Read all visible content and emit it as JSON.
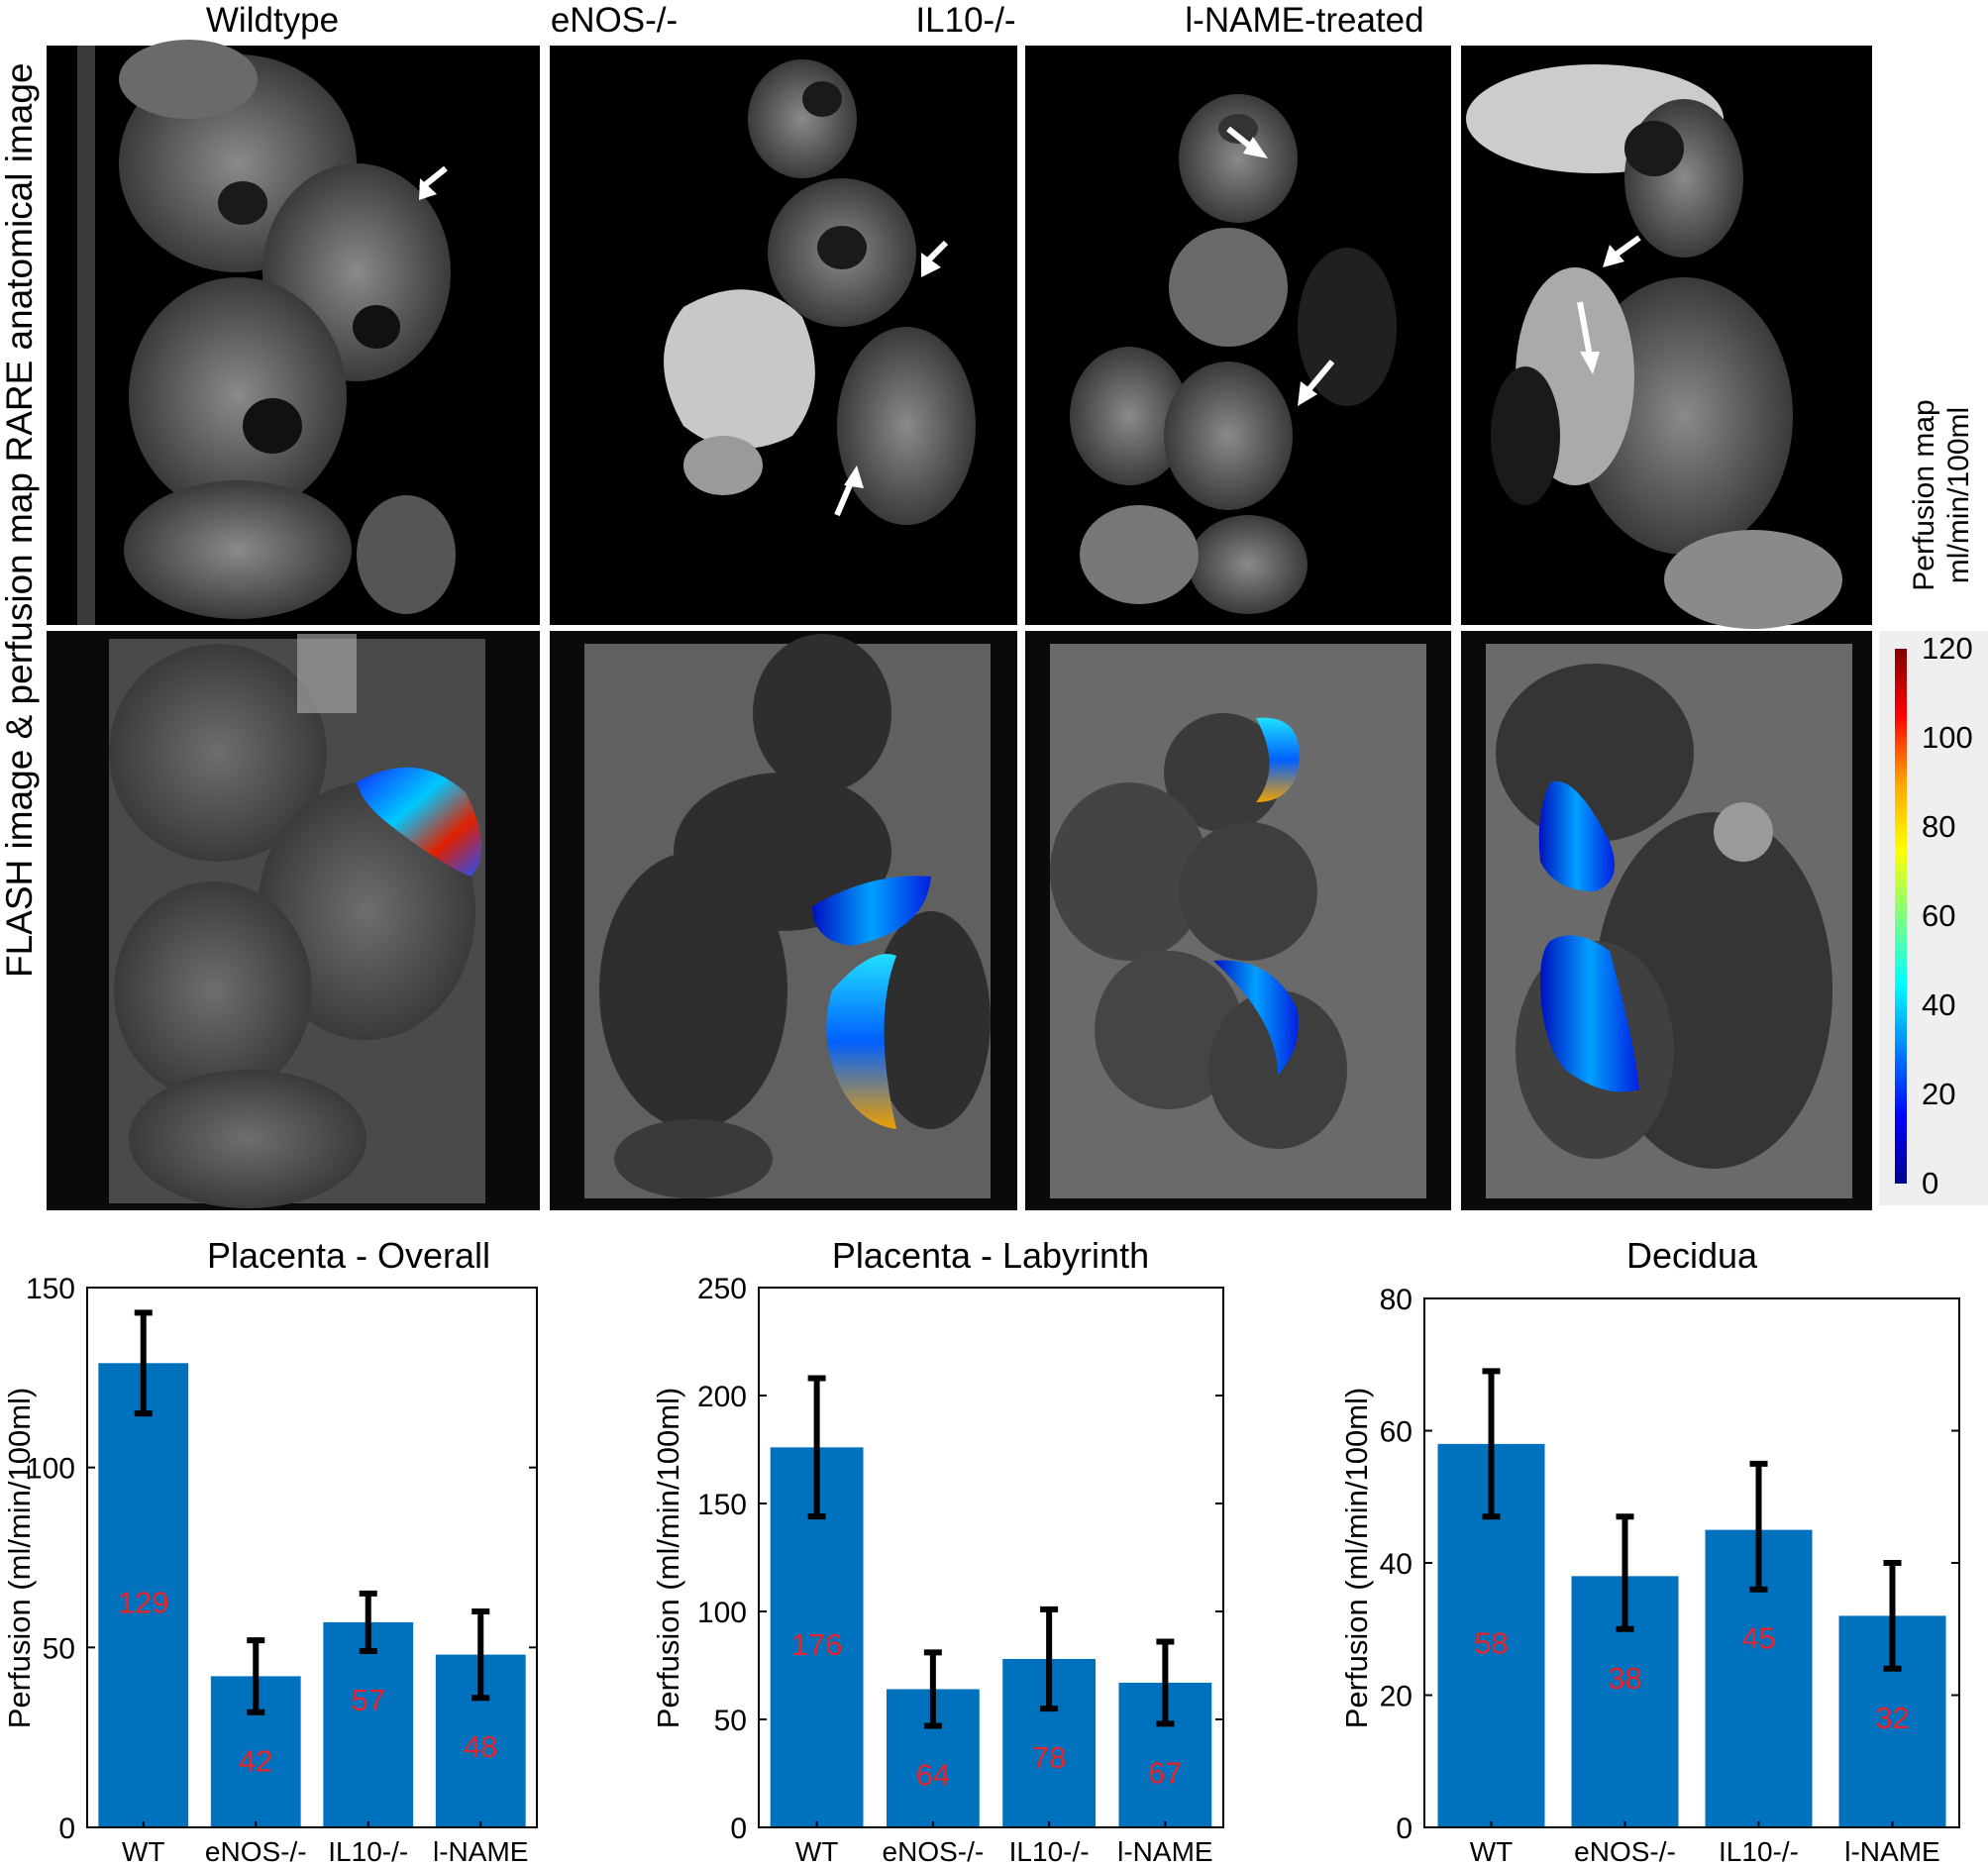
{
  "column_titles": [
    "Wildtype",
    "eNOS-/-",
    "IL10-/-",
    "l-NAME-treated"
  ],
  "row_labels": [
    "RARE anatomical image",
    "FLASH image & perfusion map"
  ],
  "colorbar": {
    "title_line1": "Perfusion map",
    "title_line2": "ml/min/100ml",
    "ticks": [
      "120",
      "100",
      "80",
      "60",
      "40",
      "20",
      "0"
    ],
    "colors": [
      "#800000",
      "#ff0000",
      "#ffa500",
      "#ffff00",
      "#7fff7f",
      "#00ffff",
      "#0080ff",
      "#0000ff",
      "#00008f"
    ]
  },
  "colors": {
    "bar": "#0072bd",
    "value_label": "#e8232a",
    "mri_background": "#000000"
  },
  "chart_data": [
    {
      "type": "bar",
      "title": "Placenta - Overall",
      "ylabel": "Perfusion (ml/min/100ml)",
      "categories": [
        "WT",
        "eNOS-/-",
        "IL10-/-",
        "l-NAME"
      ],
      "values": [
        129,
        42,
        57,
        48
      ],
      "error_low": [
        115,
        32,
        49,
        36
      ],
      "error_high": [
        143,
        52,
        65,
        60
      ],
      "value_labels": [
        "129",
        "42",
        "57",
        "48"
      ],
      "ylim": [
        0,
        150
      ],
      "yticks": [
        "0",
        "50",
        "100",
        "150"
      ]
    },
    {
      "type": "bar",
      "title": "Placenta - Labyrinth",
      "ylabel": "Perfusion (ml/min/100ml)",
      "categories": [
        "WT",
        "eNOS-/-",
        "IL10-/-",
        "l-NAME"
      ],
      "values": [
        176,
        64,
        78,
        67
      ],
      "error_low": [
        144,
        47,
        55,
        48
      ],
      "error_high": [
        208,
        81,
        101,
        86
      ],
      "value_labels": [
        "176",
        "64",
        "78",
        "67"
      ],
      "ylim": [
        0,
        250
      ],
      "yticks": [
        "0",
        "50",
        "100",
        "150",
        "200",
        "250"
      ]
    },
    {
      "type": "bar",
      "title": "Decidua",
      "ylabel": "Perfusion (ml/min/100ml)",
      "categories": [
        "WT",
        "eNOS-/-",
        "IL10-/-",
        "l-NAME"
      ],
      "values": [
        58,
        38,
        45,
        32
      ],
      "error_low": [
        47,
        30,
        36,
        24
      ],
      "error_high": [
        69,
        47,
        55,
        40
      ],
      "value_labels": [
        "58",
        "38",
        "45",
        "32"
      ],
      "ylim": [
        0,
        80
      ],
      "yticks": [
        "0",
        "20",
        "40",
        "60",
        "80"
      ]
    }
  ]
}
